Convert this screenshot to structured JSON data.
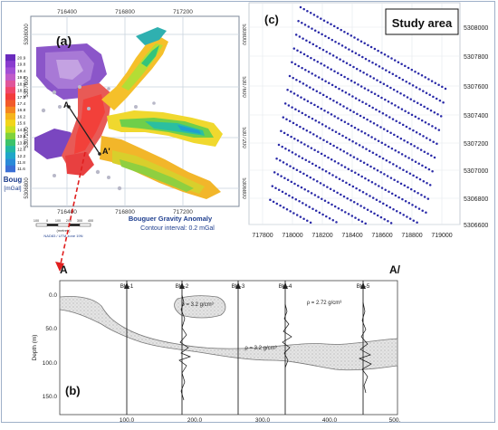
{
  "panel_a": {
    "label": "(a)",
    "x_ticks_top": [
      "716400",
      "716800",
      "717200"
    ],
    "x_ticks_bottom": [
      "716400",
      "716800",
      "717200"
    ],
    "y_ticks_left": [
      "5308000",
      "5307600",
      "5307200",
      "5306800"
    ],
    "y_ticks_right": [
      "5308000",
      "5307600",
      "5307200",
      "5306800"
    ],
    "colorbar": {
      "title": "Boug",
      "unit": "[mGal]",
      "labels": [
        "20.9",
        "19.8",
        "19.4",
        "19.0",
        "18.6",
        "18.2",
        "17.8",
        "17.4",
        "16.8",
        "16.2",
        "15.6",
        "14.8",
        "13.6",
        "13.0",
        "12.6",
        "12.2",
        "11.8",
        "11.6"
      ],
      "colors": [
        "#6a2bbd",
        "#8a3ccf",
        "#a24fd6",
        "#c05bc9",
        "#e0569b",
        "#f0466a",
        "#f23b3b",
        "#f25a2a",
        "#f5861f",
        "#f5b41c",
        "#f2d51a",
        "#c8e021",
        "#7fd23c",
        "#3cc36b",
        "#22b8a3",
        "#1fa6c9",
        "#2a8ad8",
        "#3a6fd6"
      ]
    },
    "title": "Bouguer Gravity Anomaly",
    "subtitle": "Contour interval: 0.2 mGal",
    "scale_ticks": [
      "100",
      "0",
      "100",
      "200",
      "300",
      "400"
    ],
    "scale_unit": "(metres)",
    "projection": "NAD83 / UTM zone 19N",
    "profile_start": "A",
    "profile_end": "A'"
  },
  "panel_c": {
    "label": "(c)",
    "title": "Study area",
    "x_ticks": [
      "717800",
      "718000",
      "718200",
      "718400",
      "718600",
      "718800",
      "719000"
    ],
    "y_ticks": [
      "5308000",
      "5307800",
      "5307600",
      "5307400",
      "5307200",
      "5307000",
      "5306800",
      "5306600"
    ],
    "point_color": "#2a2aa8"
  },
  "panel_b": {
    "label": "(b)",
    "end_left": "A",
    "end_right": "A/",
    "ylabel": "Depth (m)",
    "y_ticks": [
      "0.0",
      "50.0",
      "100.0",
      "150.0"
    ],
    "x_ticks": [
      "100.0",
      "200.0",
      "300.0",
      "400.0",
      "500."
    ],
    "boreholes": [
      "BH-1",
      "BH-2",
      "BH-3",
      "BH-4",
      "BH-5"
    ],
    "density_upper": "ρ = 3.2 g/cm³",
    "density_host": "ρ = 2.72 g/cm³",
    "density_lower": "ρ = 3.2 g/cm³"
  }
}
